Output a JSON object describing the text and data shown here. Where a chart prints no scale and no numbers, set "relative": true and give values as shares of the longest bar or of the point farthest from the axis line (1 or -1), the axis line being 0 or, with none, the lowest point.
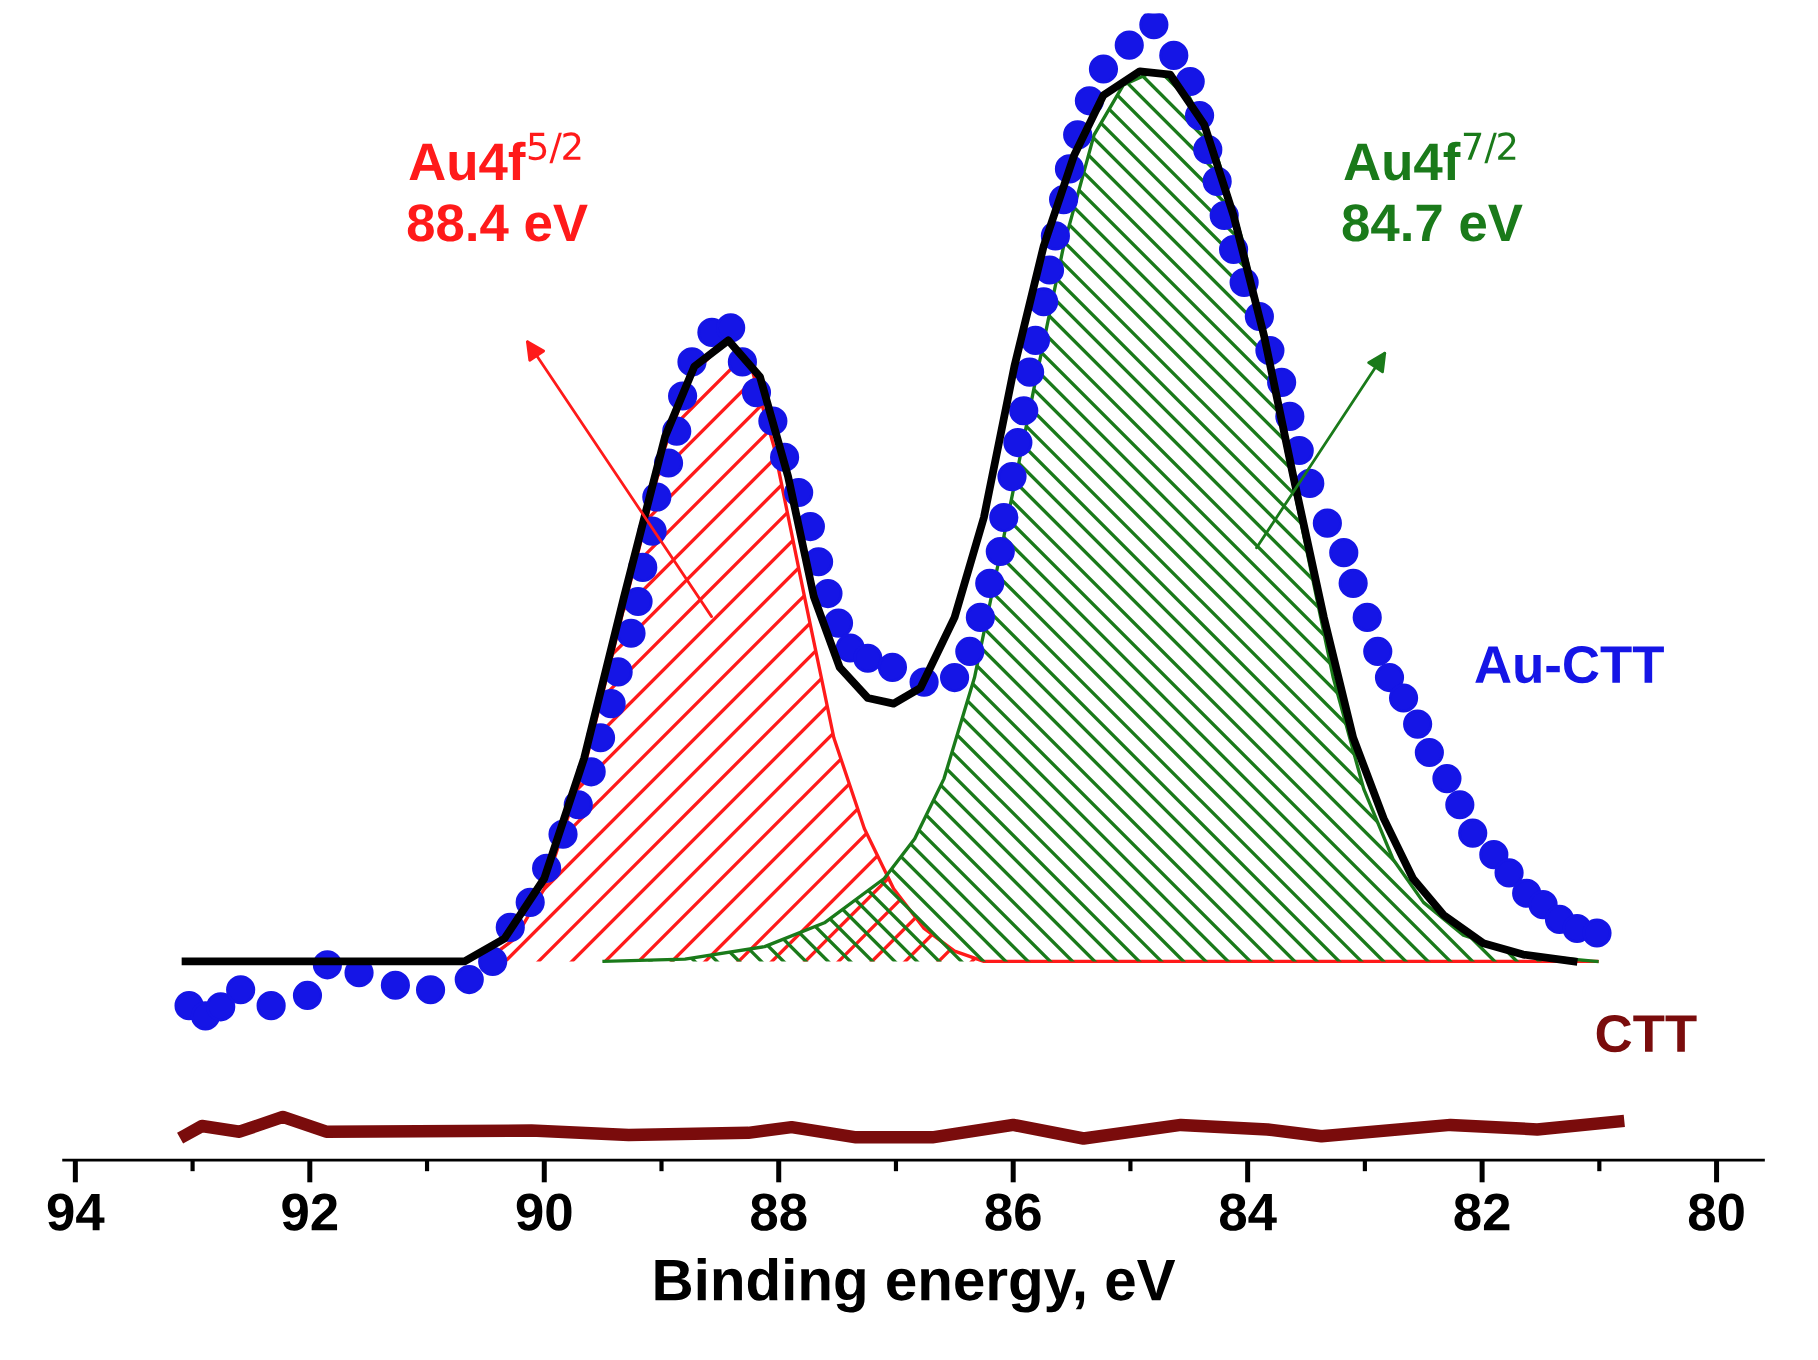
{
  "chart_data": {
    "type": "scatter",
    "relative": true,
    "xlabel": "Binding energy, eV",
    "xlim": [
      94.1,
      79.6
    ],
    "xticks": [
      94,
      {
        "value": 93,
        "label": null
      },
      92,
      {
        "value": 91,
        "label": null
      },
      90,
      {
        "value": 89,
        "label": null
      },
      88,
      {
        "value": 87,
        "label": null
      },
      86,
      {
        "value": 85,
        "label": null
      },
      84,
      {
        "value": 83,
        "label": null
      },
      82,
      {
        "value": 81,
        "label": null
      },
      80
    ],
    "tick_labels": "x",
    "grid": false,
    "legend": "right",
    "annotations": [
      "Au4f$^{5/2}$\n88.4 eV",
      "Au4f$^{7/2}$\n84.7 eV"
    ],
    "series": [
      {
        "name": "Au-CTT",
        "type": "scatter",
        "marker": "circle",
        "color": "#1515e6",
        "x": [
          93.03,
          92.89,
          92.76,
          92.59,
          92.33,
          92.02,
          91.85,
          91.58,
          91.27,
          90.97,
          90.64,
          90.44,
          90.29,
          90.12,
          89.98,
          89.84,
          89.71,
          89.6,
          89.52,
          89.43,
          89.37,
          89.26,
          89.2,
          89.16,
          89.08,
          89.04,
          88.94,
          88.87,
          88.82,
          88.74,
          88.57,
          88.41,
          88.31,
          88.19,
          88.05,
          87.95,
          87.83,
          87.73,
          87.66,
          87.58,
          87.49,
          87.39,
          87.24,
          87.03,
          86.76,
          86.5,
          86.37,
          86.28,
          86.2,
          86.11,
          86.08,
          86.01,
          85.96,
          85.91,
          85.86,
          85.81,
          85.74,
          85.69,
          85.64,
          85.57,
          85.52,
          85.45,
          85.35,
          85.23,
          85.01,
          84.8,
          84.63,
          84.49,
          84.41,
          84.34,
          84.26,
          84.2,
          84.12,
          84.03,
          83.9,
          83.81,
          83.71,
          83.64,
          83.56,
          83.47,
          83.32,
          83.18,
          83.1,
          82.98,
          82.89,
          82.79,
          82.67,
          82.55,
          82.45,
          82.3,
          82.19,
          82.08,
          81.9,
          81.77,
          81.62,
          81.48,
          81.34,
          81.19,
          81.02
        ],
        "values": [
          0.136,
          0.127,
          0.135,
          0.15,
          0.136,
          0.145,
          0.172,
          0.165,
          0.154,
          0.15,
          0.159,
          0.175,
          0.205,
          0.227,
          0.257,
          0.287,
          0.313,
          0.342,
          0.372,
          0.402,
          0.43,
          0.464,
          0.492,
          0.522,
          0.554,
          0.584,
          0.614,
          0.642,
          0.673,
          0.703,
          0.729,
          0.733,
          0.703,
          0.676,
          0.651,
          0.619,
          0.588,
          0.558,
          0.527,
          0.499,
          0.473,
          0.451,
          0.442,
          0.434,
          0.421,
          0.425,
          0.448,
          0.478,
          0.508,
          0.536,
          0.566,
          0.602,
          0.632,
          0.66,
          0.694,
          0.722,
          0.756,
          0.784,
          0.814,
          0.846,
          0.873,
          0.903,
          0.933,
          0.961,
          0.982,
          1.0,
          0.973,
          0.95,
          0.92,
          0.89,
          0.862,
          0.832,
          0.802,
          0.773,
          0.743,
          0.713,
          0.685,
          0.655,
          0.625,
          0.596,
          0.561,
          0.535,
          0.508,
          0.478,
          0.448,
          0.425,
          0.407,
          0.384,
          0.359,
          0.336,
          0.313,
          0.288,
          0.269,
          0.253,
          0.235,
          0.225,
          0.212,
          0.204,
          0.2
        ]
      },
      {
        "type": "area",
        "color": "#ff1a1a",
        "x": [
          90.51,
          90.25,
          90.0,
          89.66,
          89.32,
          88.97,
          88.72,
          88.46,
          88.26,
          88.04,
          87.78,
          87.53,
          87.27,
          87.02,
          86.76,
          86.5,
          86.25,
          81.02
        ],
        "values": [
          0.175,
          0.195,
          0.239,
          0.345,
          0.487,
          0.628,
          0.699,
          0.722,
          0.708,
          0.628,
          0.496,
          0.372,
          0.292,
          0.239,
          0.204,
          0.184,
          0.175,
          0.175
        ]
      },
      {
        "type": "area",
        "color": "#1a7a1a",
        "x": [
          89.49,
          88.8,
          88.12,
          87.61,
          87.1,
          86.84,
          86.59,
          86.33,
          86.08,
          85.82,
          85.57,
          85.31,
          85.06,
          84.8,
          84.55,
          84.29,
          84.03,
          83.78,
          83.52,
          83.27,
          83.01,
          82.76,
          82.5,
          82.16,
          81.65,
          81.02
        ],
        "values": [
          0.175,
          0.177,
          0.188,
          0.209,
          0.248,
          0.283,
          0.336,
          0.425,
          0.549,
          0.681,
          0.805,
          0.903,
          0.947,
          0.959,
          0.947,
          0.894,
          0.805,
          0.681,
          0.549,
          0.425,
          0.327,
          0.265,
          0.227,
          0.198,
          0.181,
          0.175
        ]
      },
      {
        "type": "line",
        "color": "#000000",
        "line_style": "solid",
        "x": [
          93.06,
          90.68,
          90.34,
          90.0,
          89.66,
          89.32,
          88.97,
          88.72,
          88.43,
          88.16,
          87.92,
          87.7,
          87.48,
          87.24,
          87.02,
          86.79,
          86.5,
          86.25,
          85.99,
          85.74,
          85.48,
          85.23,
          84.92,
          84.66,
          84.37,
          84.12,
          83.86,
          83.61,
          83.35,
          83.1,
          82.84,
          82.59,
          82.33,
          81.99,
          81.65,
          81.22
        ],
        "values": [
          0.175,
          0.175,
          0.195,
          0.248,
          0.354,
          0.496,
          0.637,
          0.699,
          0.722,
          0.69,
          0.602,
          0.496,
          0.434,
          0.407,
          0.402,
          0.416,
          0.478,
          0.566,
          0.699,
          0.805,
          0.885,
          0.938,
          0.959,
          0.956,
          0.912,
          0.832,
          0.726,
          0.602,
          0.478,
          0.372,
          0.301,
          0.248,
          0.216,
          0.191,
          0.181,
          0.175
        ]
      },
      {
        "name": "CTT",
        "type": "line",
        "color": "#7a0c0c",
        "line_style": "solid",
        "x": [
          93.06,
          92.92,
          92.6,
          92.23,
          91.86,
          90.11,
          89.28,
          88.26,
          87.89,
          87.34,
          86.69,
          86.0,
          85.4,
          84.57,
          83.83,
          83.37,
          82.27,
          81.53,
          80.84
        ],
        "values": [
          0.022,
          0.03,
          0.025,
          0.038,
          0.025,
          0.026,
          0.022,
          0.024,
          0.029,
          0.02,
          0.02,
          0.031,
          0.019,
          0.031,
          0.027,
          0.021,
          0.031,
          0.027,
          0.034
        ]
      }
    ]
  }
}
